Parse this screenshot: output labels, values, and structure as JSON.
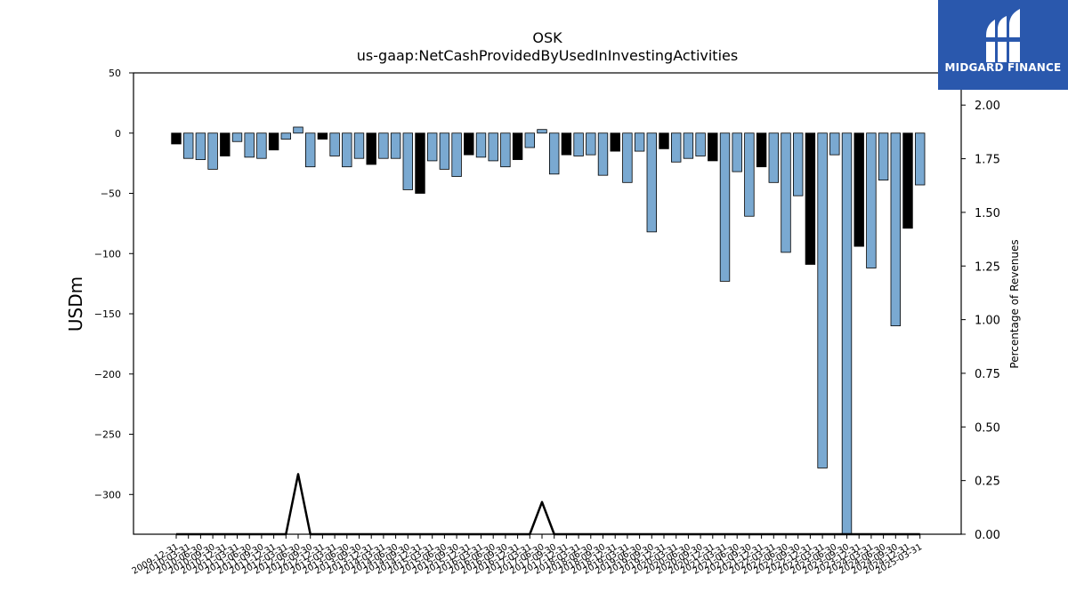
{
  "chart_data": {
    "type": "bar",
    "title": "OSK",
    "subtitle": "us-gaap:NetCashProvidedByUsedInInvestingActivities",
    "ylabel": "USDm",
    "y2label": "Percentage of Revenues",
    "ylim": [
      -333,
      50
    ],
    "y2lim": [
      0,
      2.15
    ],
    "yticks": [
      50,
      0,
      -50,
      -100,
      -150,
      -200,
      -250,
      -300
    ],
    "yticklabels": [
      "50",
      "0",
      "−50",
      "−100",
      "−150",
      "−200",
      "−250",
      "−300"
    ],
    "y2ticks": [
      0,
      0.25,
      0.5,
      0.75,
      1.0,
      1.25,
      1.5,
      1.75,
      2.0
    ],
    "y2ticklabels": [
      "0.00",
      "0.25",
      "0.50",
      "0.75",
      "1.00",
      "1.25",
      "1.50",
      "1.75",
      "2.00"
    ],
    "categories": [
      "2009-12-31",
      "2010-03-31",
      "2010-06-30",
      "2010-09-30",
      "2010-12-31",
      "2011-03-31",
      "2011-06-30",
      "2011-09-30",
      "2011-12-31",
      "2012-03-31",
      "2012-06-30",
      "2012-09-30",
      "2012-12-31",
      "2013-03-31",
      "2013-06-30",
      "2013-09-30",
      "2013-12-31",
      "2014-03-31",
      "2014-06-30",
      "2014-09-30",
      "2014-12-31",
      "2015-03-31",
      "2015-06-30",
      "2015-09-30",
      "2015-12-31",
      "2016-03-31",
      "2016-06-30",
      "2016-09-30",
      "2016-12-31",
      "2017-03-31",
      "2017-06-30",
      "2017-09-30",
      "2017-12-31",
      "2018-03-31",
      "2018-06-30",
      "2018-09-30",
      "2018-12-31",
      "2019-03-31",
      "2019-06-30",
      "2019-09-30",
      "2019-12-31",
      "2020-03-31",
      "2020-06-30",
      "2020-09-30",
      "2020-12-31",
      "2021-03-31",
      "2021-06-30",
      "2021-09-30",
      "2021-12-31",
      "2022-03-31",
      "2022-06-30",
      "2022-09-30",
      "2022-12-31",
      "2023-03-31",
      "2023-06-30",
      "2023-09-30",
      "2023-12-31",
      "2024-03-31",
      "2024-06-30",
      "2024-09-30",
      "2024-12-31",
      "2025-03-31"
    ],
    "values": [
      -9,
      -21,
      -22,
      -30,
      -19,
      -7,
      -20,
      -21,
      -14,
      -5,
      5,
      -28,
      -5,
      -19,
      -28,
      -21,
      -26,
      -21,
      -21,
      -47,
      -50,
      -23,
      -30,
      -36,
      -18,
      -20,
      -23,
      -28,
      -22,
      -12,
      3,
      -34,
      -18,
      -19,
      -18,
      -35,
      -15,
      -41,
      -15,
      -82,
      -13,
      -24,
      -21,
      -19,
      -23,
      -123,
      -32,
      -69,
      -28,
      -41,
      -99,
      -52,
      -109,
      -278,
      -18,
      -333,
      -94,
      -112,
      -39,
      -160,
      -79,
      -43
    ],
    "fills": [
      "#000000",
      "#7aa9d1",
      "#7aa9d1",
      "#7aa9d1",
      "#000000",
      "#7aa9d1",
      "#7aa9d1",
      "#7aa9d1",
      "#000000",
      "#7aa9d1",
      "#7aa9d1",
      "#7aa9d1",
      "#000000",
      "#7aa9d1",
      "#7aa9d1",
      "#7aa9d1",
      "#000000",
      "#7aa9d1",
      "#7aa9d1",
      "#7aa9d1",
      "#000000",
      "#7aa9d1",
      "#7aa9d1",
      "#7aa9d1",
      "#000000",
      "#7aa9d1",
      "#7aa9d1",
      "#7aa9d1",
      "#000000",
      "#7aa9d1",
      "#7aa9d1",
      "#7aa9d1",
      "#000000",
      "#7aa9d1",
      "#7aa9d1",
      "#7aa9d1",
      "#000000",
      "#7aa9d1",
      "#7aa9d1",
      "#7aa9d1",
      "#000000",
      "#7aa9d1",
      "#7aa9d1",
      "#7aa9d1",
      "#000000",
      "#7aa9d1",
      "#7aa9d1",
      "#7aa9d1",
      "#000000",
      "#7aa9d1",
      "#7aa9d1",
      "#7aa9d1",
      "#000000",
      "#7aa9d1",
      "#7aa9d1",
      "#7aa9d1",
      "#000000",
      "#7aa9d1",
      "#7aa9d1",
      "#7aa9d1",
      "#000000",
      "#7aa9d1"
    ],
    "pct_of_revenues": [
      0,
      0,
      0,
      0,
      0,
      0,
      0,
      0,
      0,
      0,
      0.28,
      0,
      0,
      0,
      0,
      0,
      0,
      0,
      0,
      0,
      0,
      0,
      0,
      0,
      0,
      0,
      0,
      0,
      0,
      0,
      0.15,
      0,
      0,
      0,
      0,
      0,
      0,
      0,
      0,
      0,
      0,
      0,
      0,
      0,
      0,
      0,
      0,
      0,
      0,
      0,
      0,
      0,
      0,
      0,
      0,
      0,
      0,
      0,
      0,
      0,
      0,
      0
    ],
    "colors": {
      "positive_bar": "#7aa9d1",
      "negative_bar": "#000000",
      "bar_edge": "#000000",
      "line": "#000000"
    },
    "grid": false
  },
  "logo": {
    "text": "MIDGARD FINANCE",
    "background": "#2a58ad"
  }
}
